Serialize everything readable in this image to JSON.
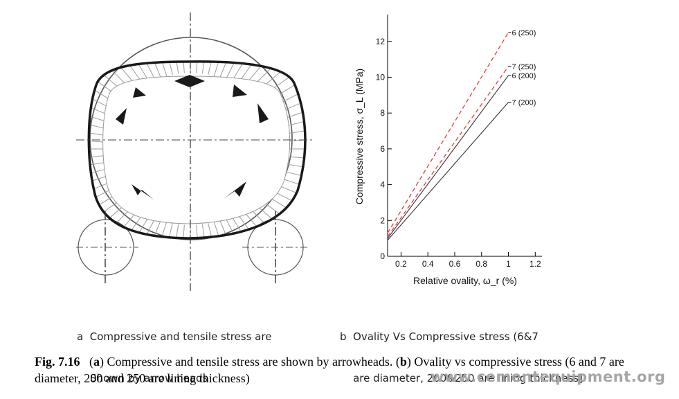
{
  "figure": {
    "panel_a_caption_line1": "a  Compressive and tensile stress are",
    "panel_a_caption_line2": "    Shown by arrow heads",
    "panel_b_caption_line1": "b  Ovality Vs Compressive stress (6&7",
    "panel_b_caption_line2": "    are diameter, 200&250 are lining thickness]",
    "caption_label": "Fig. 7.16",
    "caption_a_letter": "a",
    "caption_a_text": "Compressive and tensile stress are shown by arrowheads. (",
    "caption_b_letter": "b",
    "caption_b_text": "Ovality vs compressive stress (6 and 7 are diameter, 200 and 250 are lining thickness)",
    "watermark": "www.cementequipment.org"
  },
  "chart_data": {
    "type": "line",
    "xlabel": "Relative ovality, ω_r (%)",
    "ylabel": "Compressive stress, σ_L (MPa)",
    "xlim": [
      0.1,
      1.25
    ],
    "ylim": [
      0,
      13.5
    ],
    "xticks": [
      0.2,
      0.4,
      0.6,
      0.8,
      1,
      1.2
    ],
    "yticks": [
      0,
      2,
      4,
      6,
      8,
      10,
      12
    ],
    "grid": false,
    "series": [
      {
        "name": "6 (250)",
        "style": "dashed",
        "color": "#e03c3c",
        "x": [
          0.1,
          1.0
        ],
        "y": [
          1.3,
          12.5
        ]
      },
      {
        "name": "7 (250)",
        "style": "dashed",
        "color": "#e03c3c",
        "x": [
          0.1,
          1.0
        ],
        "y": [
          1.1,
          10.6
        ]
      },
      {
        "name": "6 (200)",
        "style": "solid",
        "color": "#333333",
        "x": [
          0.1,
          1.0
        ],
        "y": [
          1.0,
          10.1
        ]
      },
      {
        "name": "7 (200)",
        "style": "solid",
        "color": "#333333",
        "x": [
          0.1,
          1.0
        ],
        "y": [
          0.9,
          8.6
        ]
      }
    ]
  }
}
